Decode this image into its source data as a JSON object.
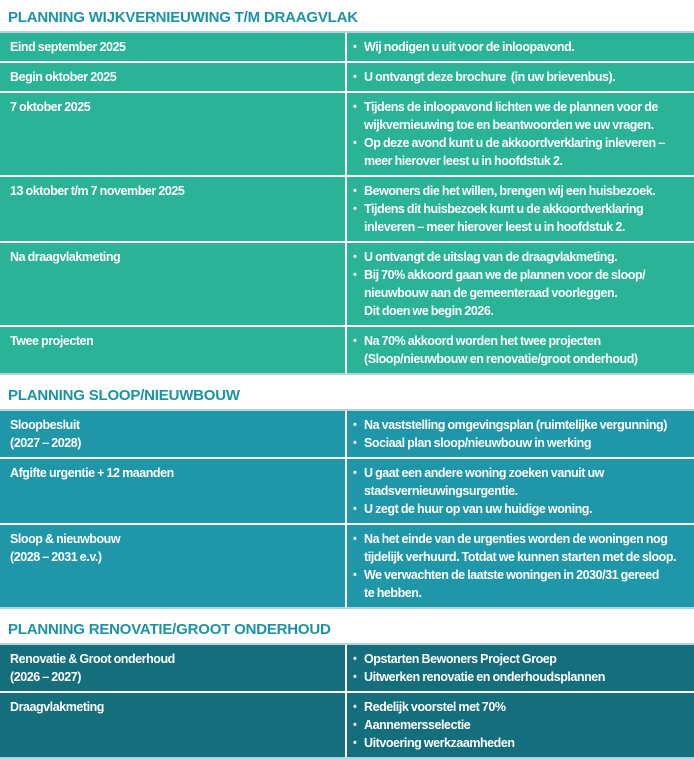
{
  "colors": {
    "title_text": "#1a93a6",
    "row_text": "#ffffff",
    "separator": "#ffffff",
    "edge": "#aed7e0",
    "section1_row_bg": "#2ab396",
    "section2_row_bg": "#1f97a8",
    "section3_row_bg": "#156e7c"
  },
  "bullet_char": "•",
  "sections": [
    {
      "title": "PLANNING WIJKVERNIEUWING T/M DRAAGVLAK",
      "row_bg": "#2ab396",
      "rows": [
        {
          "left": "Eind september 2025",
          "bullets": [
            "Wij nodigen u uit voor de inloopavond."
          ]
        },
        {
          "left": "Begin oktober 2025",
          "bullets": [
            "U ontvangt deze brochure  (in uw brievenbus)."
          ]
        },
        {
          "left": "7 oktober 2025",
          "bullets": [
            "Tijdens de inloopavond lichten we de plannen voor de\nwijkvernieuwing toe en beantwoorden we uw vragen.",
            "Op deze avond kunt u de akkoordverklaring inleveren –\nmeer hierover leest u in hoofdstuk 2."
          ]
        },
        {
          "left": "13 oktober t/m 7 november 2025",
          "bullets": [
            "Bewoners die het willen, brengen wij een huisbezoek.",
            "Tijdens dit huisbezoek kunt u de akkoordverklaring\ninleveren – meer hierover leest u in hoofdstuk 2."
          ]
        },
        {
          "left": "Na draagvlakmeting",
          "bullets": [
            "U ontvangt de uitslag van de draagvlakmeting.",
            "Bij 70% akkoord gaan we de plannen voor de sloop/\nnieuwbouw aan de gemeenteraad voorleggen.\nDit doen we begin 2026."
          ]
        },
        {
          "left": "Twee projecten",
          "bullets": [
            "Na 70% akkoord worden het twee projecten\n(Sloop/nieuwbouw en renovatie/groot onderhoud)"
          ]
        }
      ]
    },
    {
      "title": "PLANNING SLOOP/NIEUWBOUW",
      "row_bg": "#1f97a8",
      "rows": [
        {
          "left": "Sloopbesluit\n(2027 – 2028)",
          "bullets": [
            "Na vaststelling omgevingsplan (ruimtelijke vergunning)",
            "Sociaal plan sloop/nieuwbouw in werking"
          ]
        },
        {
          "left": "Afgifte urgentie + 12 maanden",
          "bullets": [
            "U gaat een andere woning zoeken vanuit uw\nstadsvernieuwingsurgentie.",
            "U zegt de huur op van uw huidige woning."
          ]
        },
        {
          "left": "Sloop & nieuwbouw\n(2028 – 2031 e.v.)",
          "bullets": [
            "Na het einde van de urgenties worden de woningen nog\ntijdelijk verhuurd. Totdat we kunnen starten met de sloop.",
            "We verwachten de laatste woningen in 2030/31 gereed\nte hebben."
          ]
        }
      ]
    },
    {
      "title": "PLANNING RENOVATIE/GROOT ONDERHOUD",
      "row_bg": "#156e7c",
      "rows": [
        {
          "left": "Renovatie & Groot onderhoud\n(2026 – 2027)",
          "bullets": [
            "Opstarten Bewoners Project Groep",
            "Uitwerken renovatie en onderhoudsplannen"
          ]
        },
        {
          "left": "Draagvlakmeting",
          "bullets": [
            "Redelijk voorstel met 70%",
            "Aannemersselectie",
            "Uitvoering werkzaamheden"
          ]
        }
      ]
    }
  ]
}
